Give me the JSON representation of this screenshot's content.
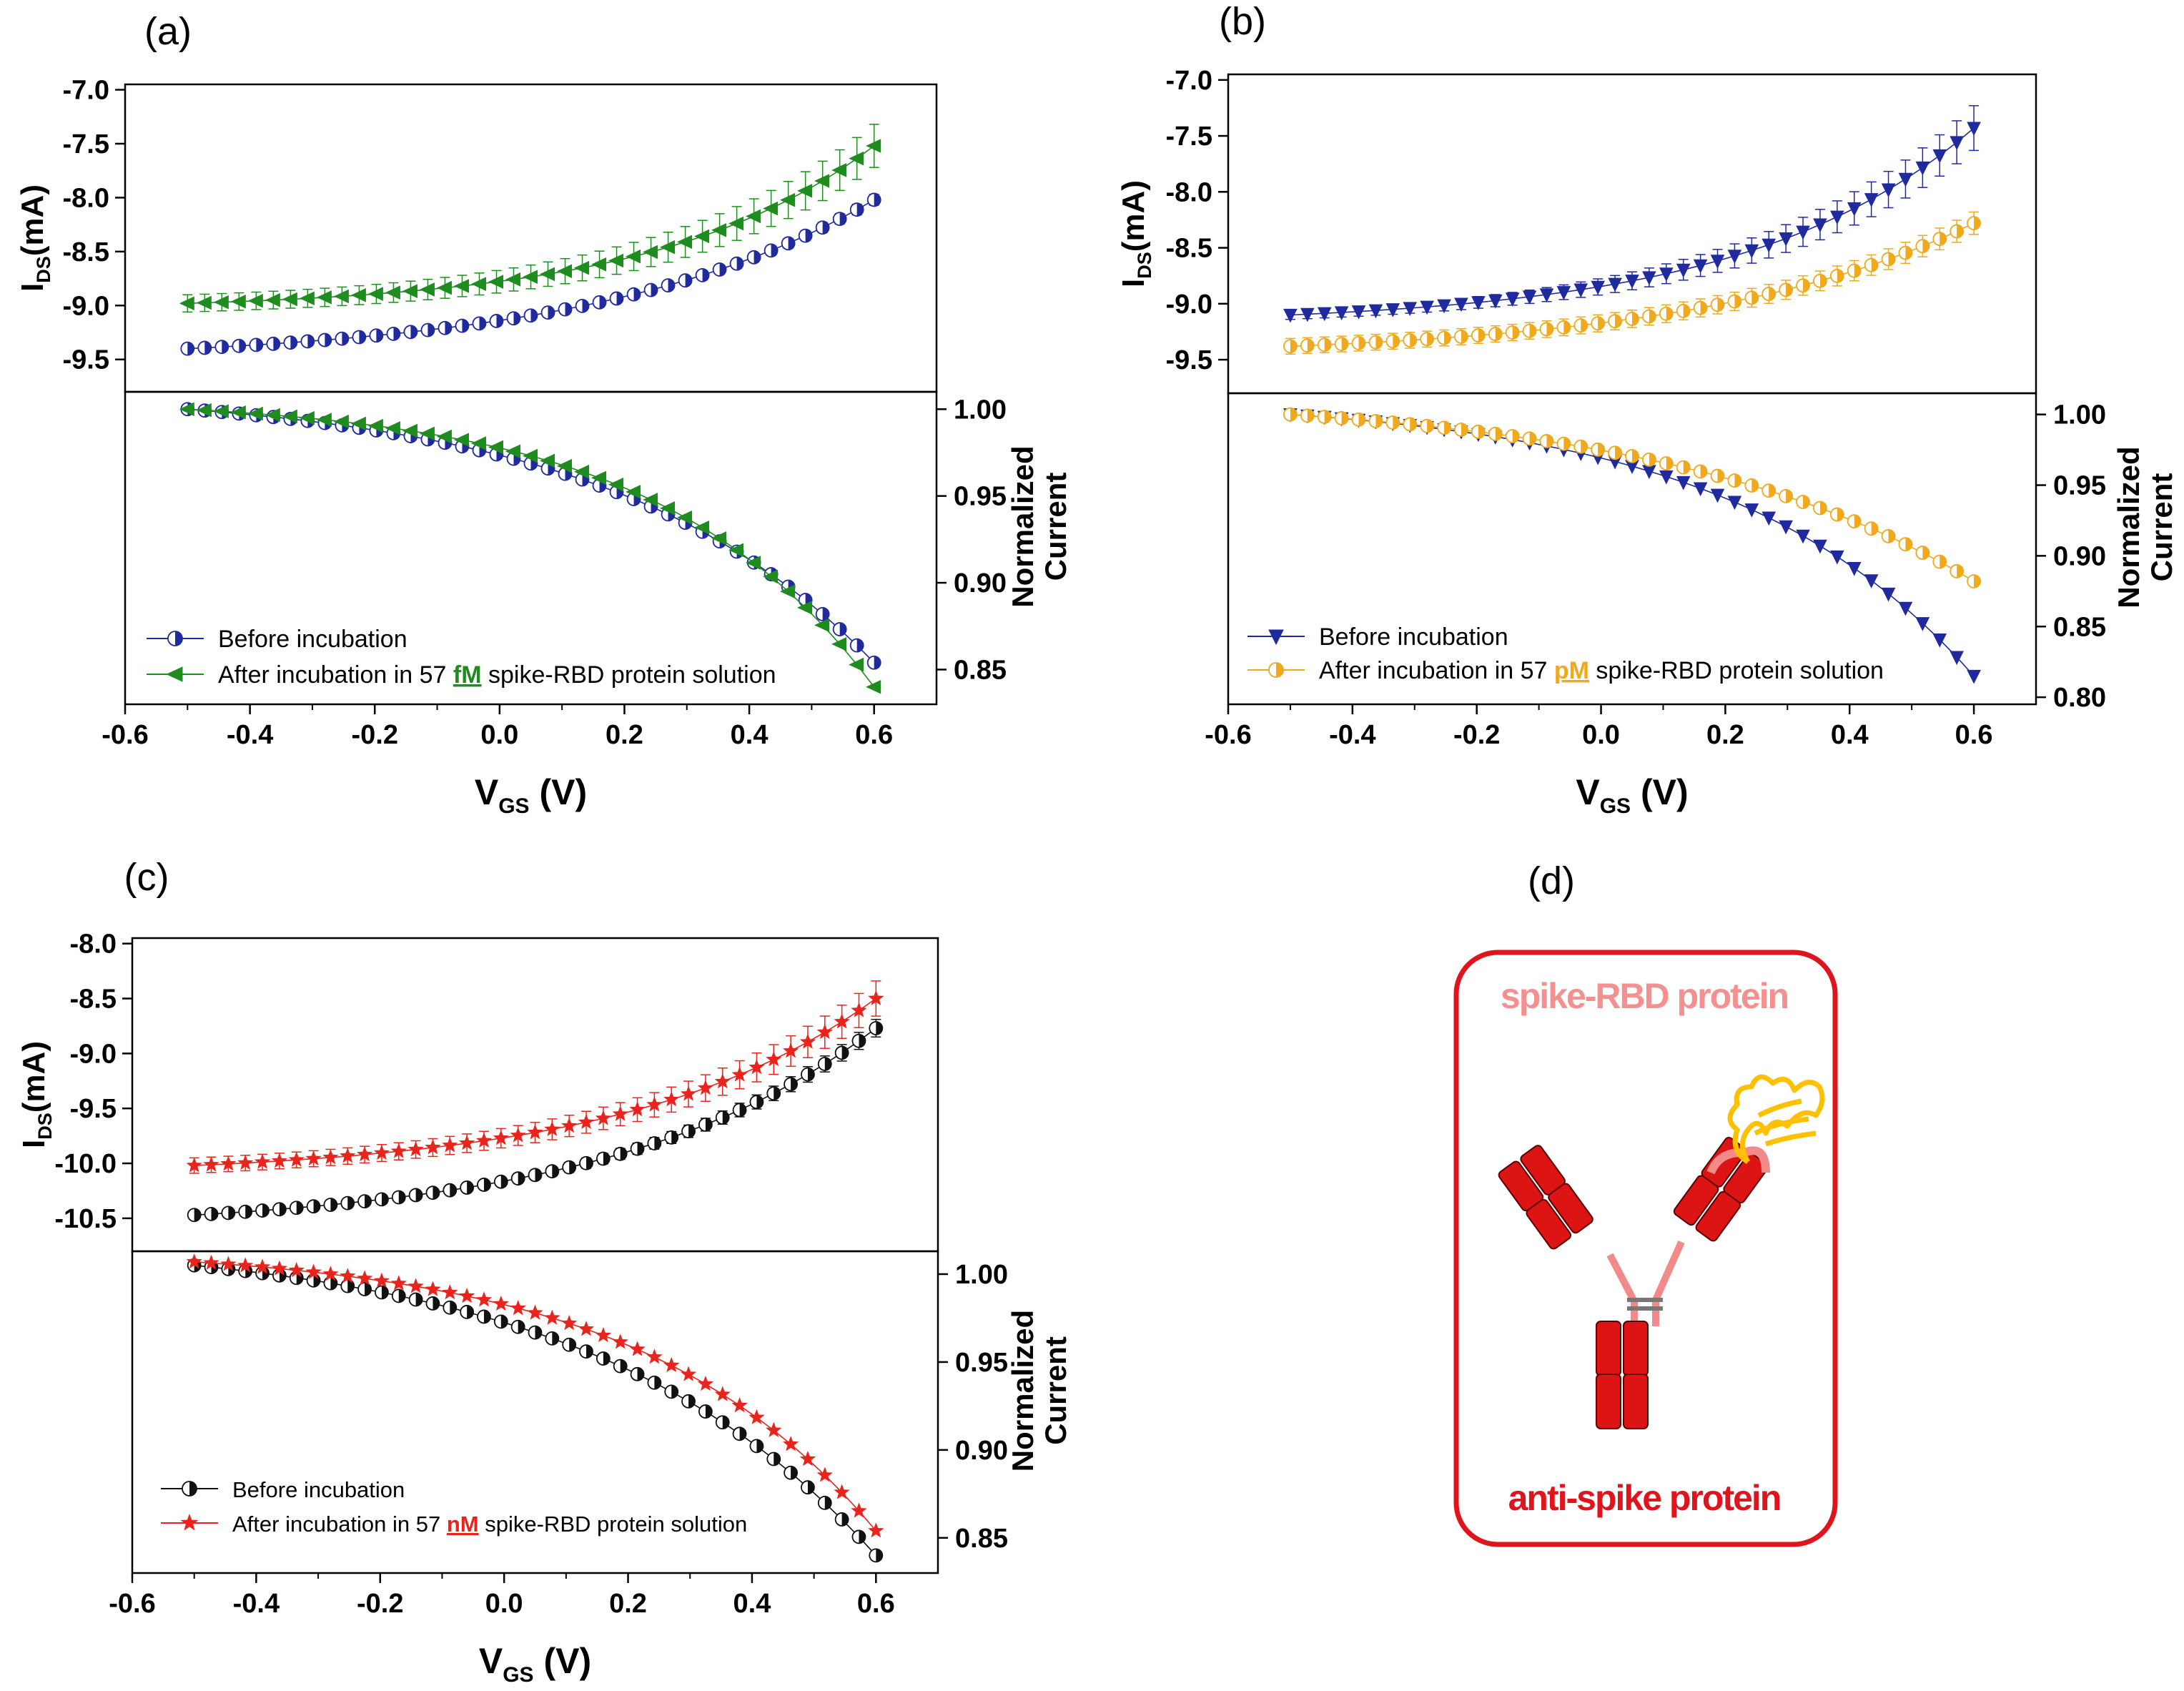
{
  "chart_data": [
    {
      "type": "line",
      "panel_label": "(a)",
      "xlabel_main": "V",
      "xlabel_sub": "GS",
      "xlabel_unit": "(V)",
      "ylabel_main": "I",
      "ylabel_sub": "DS",
      "ylabel_unit": "(mA)",
      "ylabel_right": [
        "Normalized",
        "Current"
      ],
      "x_ticks": [
        "-0.6",
        "-0.4",
        "-0.2",
        "0.0",
        "0.2",
        "0.4",
        "0.6"
      ],
      "top_y_ticks": [
        "-7.0",
        "-7.5",
        "-8.0",
        "-8.5",
        "-9.0",
        "-9.5"
      ],
      "bottom_y_ticks": [
        "1.00",
        "0.95",
        "0.90",
        "0.85"
      ],
      "xlim": [
        -0.6,
        0.7
      ],
      "top_ylim": [
        -9.8,
        -6.95
      ],
      "bottom_ylim": [
        0.83,
        1.01
      ],
      "top_series": [
        {
          "start": -9.4,
          "end": -8.02,
          "err_start": 0.03,
          "err_end": 0.05,
          "curve": 2.5,
          "color": "#1f2a9e",
          "marker": "half-circle"
        },
        {
          "start": -8.98,
          "end": -7.52,
          "err_start": 0.08,
          "err_end": 0.2,
          "curve": 3.2,
          "color": "#1e8c1e",
          "marker": "triangle-left"
        }
      ],
      "bottom_series": [
        {
          "start": 1.0,
          "end": 0.854,
          "curve": 2.6,
          "color": "#1f2a9e",
          "marker": "half-circle"
        },
        {
          "start": 1.0,
          "end": 0.84,
          "curve": 3.2,
          "color": "#1e8c1e",
          "marker": "triangle-left"
        }
      ],
      "legend": [
        {
          "text": "Before incubation"
        },
        {
          "prefix": "After incubation in 57 ",
          "unit": "fM",
          "suffix": " spike-RBD protein solution",
          "unit_color": "#1e8c1e"
        }
      ]
    },
    {
      "type": "line",
      "panel_label": "(b)",
      "xlabel_main": "V",
      "xlabel_sub": "GS",
      "xlabel_unit": "(V)",
      "ylabel_main": "I",
      "ylabel_sub": "DS",
      "ylabel_unit": "(mA)",
      "ylabel_right": [
        "Normalized",
        "Current"
      ],
      "x_ticks": [
        "-0.6",
        "-0.4",
        "-0.2",
        "0.0",
        "0.2",
        "0.4",
        "0.6"
      ],
      "top_y_ticks": [
        "-7.0",
        "-7.5",
        "-8.0",
        "-8.5",
        "-9.0",
        "-9.5"
      ],
      "bottom_y_ticks": [
        "1.00",
        "0.95",
        "0.90",
        "0.85",
        "0.80"
      ],
      "xlim": [
        -0.6,
        0.7
      ],
      "top_ylim": [
        -9.8,
        -6.95
      ],
      "bottom_ylim": [
        0.795,
        1.015
      ],
      "top_series": [
        {
          "start": -9.1,
          "end": -7.43,
          "err_start": 0.04,
          "err_end": 0.2,
          "curve": 3.0,
          "color": "#1f2a9e",
          "marker": "triangle-down"
        },
        {
          "start": -9.38,
          "end": -8.28,
          "err_start": 0.07,
          "err_end": 0.1,
          "curve": 2.5,
          "color": "#f0a81c",
          "marker": "half-circle"
        }
      ],
      "bottom_series": [
        {
          "start": 1.0,
          "end": 0.815,
          "curve": 2.8,
          "color": "#1f2a9e",
          "marker": "triangle-down"
        },
        {
          "start": 1.0,
          "end": 0.882,
          "curve": 2.2,
          "color": "#f0a81c",
          "marker": "half-circle"
        }
      ],
      "legend": [
        {
          "text": "Before incubation"
        },
        {
          "prefix": "After incubation in 57 ",
          "unit": "pM",
          "suffix": " spike-RBD protein solution",
          "unit_color": "#f0a81c"
        }
      ]
    },
    {
      "type": "line",
      "panel_label": "(c)",
      "xlabel_main": "V",
      "xlabel_sub": "GS",
      "xlabel_unit": "(V)",
      "ylabel_main": "I",
      "ylabel_sub": "DS",
      "ylabel_unit": "(mA)",
      "ylabel_right": [
        "Normalized",
        "Current"
      ],
      "x_ticks": [
        "-0.6",
        "-0.4",
        "-0.2",
        "0.0",
        "0.2",
        "0.4",
        "0.6"
      ],
      "top_y_ticks": [
        "-8.0",
        "-8.5",
        "-9.0",
        "-9.5",
        "-10.0",
        "-10.5"
      ],
      "bottom_y_ticks": [
        "1.00",
        "0.95",
        "0.90",
        "0.85"
      ],
      "xlim": [
        -0.6,
        0.7
      ],
      "top_ylim": [
        -10.8,
        -7.95
      ],
      "bottom_ylim": [
        0.83,
        1.013
      ],
      "top_series": [
        {
          "start": -10.47,
          "end": -8.77,
          "err_start": 0.03,
          "err_end": 0.08,
          "curve": 2.6,
          "color": "#111111",
          "marker": "half-circle"
        },
        {
          "start": -10.02,
          "end": -8.5,
          "err_start": 0.07,
          "err_end": 0.16,
          "curve": 2.8,
          "color": "#e8241c",
          "marker": "star"
        }
      ],
      "bottom_series": [
        {
          "start": 1.005,
          "end": 0.84,
          "curve": 2.4,
          "color": "#111111",
          "marker": "half-circle"
        },
        {
          "start": 1.007,
          "end": 0.854,
          "curve": 2.9,
          "color": "#e8241c",
          "marker": "star"
        }
      ],
      "legend": [
        {
          "text": "Before incubation"
        },
        {
          "prefix": "After incubation in 57 ",
          "unit": "nM",
          "suffix": " spike-RBD protein solution",
          "unit_color": "#e8241c"
        }
      ]
    }
  ],
  "panel_d": {
    "label": "(d)",
    "top_text": "spike-RBD protein",
    "bottom_text": "anti-spike protein",
    "border_color": "#e0141c",
    "antibody_color": "#dc1414",
    "protein_color": "#ffc000",
    "top_text_color": "#f49090",
    "bottom_text_color": "#e0141c"
  }
}
